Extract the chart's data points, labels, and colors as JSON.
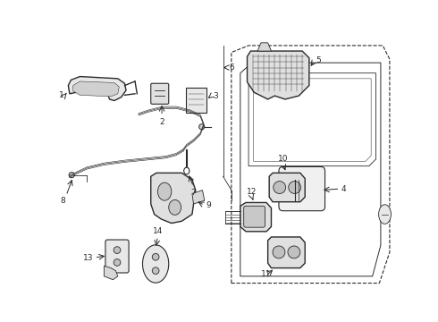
{
  "bg_color": "#ffffff",
  "line_color": "#2a2a2a",
  "figsize": [
    4.9,
    3.6
  ],
  "dpi": 100,
  "label_fontsize": 6.5,
  "lw_part": 1.0,
  "lw_thin": 0.6,
  "lw_door": 0.8
}
